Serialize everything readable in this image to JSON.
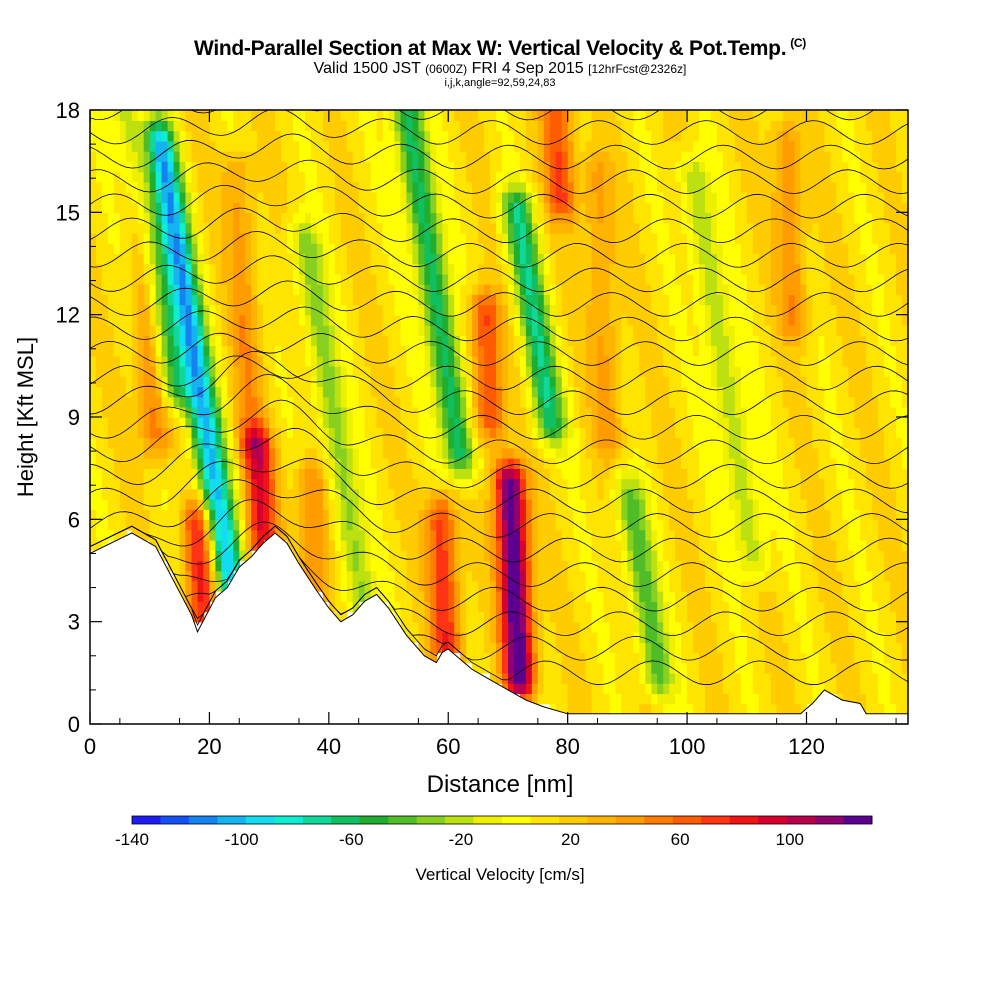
{
  "title": {
    "main": "Wind-Parallel Section at Max W: Vertical Velocity & Pot.Temp.",
    "copyright": "(C)",
    "valid_prefix": "Valid 1500 JST",
    "valid_utc": "(0600Z)",
    "valid_date": "FRI 4 Sep 2015",
    "forecast_info": "[12hrFcst@2326z]",
    "indices": "i,j,k,angle=92,59,24,83"
  },
  "chart_data": {
    "type": "heatmap",
    "xlabel": "Distance [nm]",
    "ylabel": "Height [Kft MSL]",
    "xlim": [
      0,
      137
    ],
    "ylim": [
      0,
      18
    ],
    "x_ticks": [
      0,
      20,
      40,
      60,
      80,
      100,
      120
    ],
    "y_ticks": [
      0,
      3,
      6,
      9,
      12,
      15,
      18
    ],
    "colorbar": {
      "label": "Vertical Velocity [cm/s]",
      "range": [
        -140,
        130
      ],
      "tick_labels": [
        "-140",
        "-100",
        "-60",
        "-20",
        "20",
        "60",
        "100"
      ],
      "tick_values": [
        -140,
        -100,
        -60,
        -20,
        20,
        60,
        100
      ],
      "colors": [
        "#1c1cf2",
        "#1450f5",
        "#1482f0",
        "#14b4f0",
        "#14dcf0",
        "#10eed2",
        "#10d898",
        "#10c060",
        "#20ae30",
        "#50bc28",
        "#88d020",
        "#bce010",
        "#eef000",
        "#ffff00",
        "#ffe400",
        "#ffcc00",
        "#ffb400",
        "#ff9c00",
        "#ff7c00",
        "#ff5c00",
        "#ff3414",
        "#f01414",
        "#d8002c",
        "#b8004c",
        "#900070",
        "#5c0090"
      ]
    },
    "updrafts": [
      {
        "x": 11,
        "z0": 8.5,
        "z1": 18,
        "w": 45
      },
      {
        "x": 19,
        "z0": 2.7,
        "z1": 5.8,
        "w": 70
      },
      {
        "x": 29,
        "z0": 5.0,
        "z1": 8.0,
        "w": 75
      },
      {
        "x": 27,
        "z0": 8.5,
        "z1": 16,
        "w": 30
      },
      {
        "x": 38,
        "z0": 3.5,
        "z1": 7.0,
        "w": 40
      },
      {
        "x": 60,
        "z0": 2.0,
        "z1": 6.0,
        "w": 65
      },
      {
        "x": 67,
        "z0": 9.0,
        "z1": 12.0,
        "w": 60
      },
      {
        "x": 72,
        "z0": 1.5,
        "z1": 7.0,
        "w": 125
      },
      {
        "x": 79,
        "z0": 15.5,
        "z1": 18,
        "w": 55
      },
      {
        "x": 87,
        "z0": 8.5,
        "z1": 16,
        "w": 30
      },
      {
        "x": 118,
        "z0": 12.0,
        "z1": 17,
        "w": 35
      }
    ],
    "downdrafts": [
      {
        "x": 24,
        "z0": 3.5,
        "z1": 17,
        "w": -115
      },
      {
        "x": 14,
        "z0": 10.0,
        "z1": 18,
        "w": -70
      },
      {
        "x": 62,
        "z0": 8.0,
        "z1": 18,
        "w": -80
      },
      {
        "x": 77,
        "z0": 9.0,
        "z1": 15,
        "w": -75
      },
      {
        "x": 95,
        "z0": 1.5,
        "z1": 6.5,
        "w": -55
      },
      {
        "x": 46,
        "z0": 3.0,
        "z1": 14,
        "w": -45
      },
      {
        "x": 111,
        "z0": 5.0,
        "z1": 16,
        "w": -40
      }
    ],
    "terrain": [
      [
        0,
        5
      ],
      [
        7,
        5.6
      ],
      [
        11,
        5.2
      ],
      [
        14,
        4.2
      ],
      [
        17,
        3.2
      ],
      [
        18,
        2.7
      ],
      [
        21,
        3.7
      ],
      [
        23,
        4.0
      ],
      [
        25,
        4.6
      ],
      [
        27,
        4.9
      ],
      [
        29,
        5.3
      ],
      [
        31,
        5.6
      ],
      [
        33,
        5.3
      ],
      [
        35,
        4.7
      ],
      [
        38,
        3.9
      ],
      [
        40,
        3.4
      ],
      [
        42,
        3.0
      ],
      [
        44,
        3.2
      ],
      [
        46,
        3.6
      ],
      [
        48,
        3.8
      ],
      [
        50,
        3.4
      ],
      [
        53,
        2.6
      ],
      [
        56,
        2.0
      ],
      [
        58,
        1.8
      ],
      [
        59,
        2.1
      ],
      [
        60,
        2.2
      ],
      [
        62,
        1.9
      ],
      [
        64,
        1.6
      ],
      [
        67,
        1.3
      ],
      [
        70,
        1.0
      ],
      [
        73,
        0.7
      ],
      [
        76,
        0.5
      ],
      [
        80,
        0.3
      ],
      [
        100,
        0.3
      ],
      [
        119,
        0.3
      ],
      [
        121,
        0.6
      ],
      [
        123,
        1.0
      ],
      [
        124,
        0.9
      ],
      [
        126,
        0.7
      ],
      [
        129,
        0.6
      ],
      [
        130,
        0.3
      ],
      [
        137,
        0.3
      ]
    ],
    "isentropes_count": 24
  }
}
